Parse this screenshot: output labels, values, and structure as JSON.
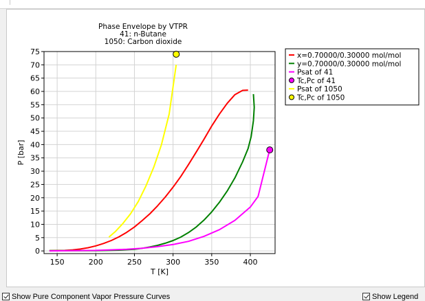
{
  "chart_data": {
    "type": "line",
    "title": [
      "Phase Envelope by VTPR",
      "41: n-Butane",
      "1050: Carbon dioxide"
    ],
    "xlabel": "T [K]",
    "ylabel": "P [bar]",
    "xlim": [
      133,
      432
    ],
    "ylim": [
      -1,
      75
    ],
    "xticks": [
      150,
      200,
      250,
      300,
      350,
      400
    ],
    "yticks": [
      0,
      5,
      10,
      15,
      20,
      25,
      30,
      35,
      40,
      45,
      50,
      55,
      60,
      65,
      70,
      75
    ],
    "grid": true,
    "legend_position": "right",
    "series": [
      {
        "name": "x=0.70000/0.30000 mol/mol",
        "color": "#ff0000",
        "kind": "line",
        "x": [
          140,
          160,
          170,
          180,
          190,
          200,
          210,
          220,
          230,
          240,
          250,
          260,
          270,
          280,
          290,
          300,
          310,
          320,
          330,
          340,
          350,
          360,
          370,
          380,
          390,
          397
        ],
        "y": [
          0.1,
          0.2,
          0.4,
          0.7,
          1.2,
          1.9,
          2.8,
          3.9,
          5.3,
          7.0,
          9.0,
          11.4,
          14.0,
          17.0,
          20.3,
          24.0,
          28.0,
          32.5,
          37.2,
          42.0,
          47.0,
          51.5,
          55.5,
          58.8,
          60.4,
          60.5
        ]
      },
      {
        "name": "y=0.70000/0.30000 mol/mol",
        "color": "#008000",
        "kind": "line",
        "x": [
          140,
          200,
          230,
          250,
          260,
          270,
          280,
          290,
          300,
          310,
          320,
          330,
          340,
          350,
          360,
          370,
          380,
          390,
          397,
          401,
          404,
          405,
          404
        ],
        "y": [
          0.1,
          0.1,
          0.3,
          0.6,
          1.0,
          1.5,
          2.1,
          2.9,
          3.9,
          5.2,
          6.9,
          9.0,
          11.6,
          14.7,
          18.3,
          22.5,
          27.5,
          33.5,
          38.5,
          43.0,
          49.0,
          54.0,
          59.0
        ]
      },
      {
        "name": "Psat of 41",
        "color": "#ff00ff",
        "kind": "line",
        "x": [
          140,
          200,
          240,
          260,
          280,
          300,
          320,
          340,
          360,
          380,
          400,
          410,
          425
        ],
        "y": [
          0.0,
          0.2,
          0.6,
          1.0,
          1.6,
          2.4,
          3.6,
          5.5,
          8.0,
          11.5,
          16.5,
          20.5,
          38.0
        ]
      },
      {
        "name": "Tc,Pc of 41",
        "color": "#ff00ff",
        "kind": "point",
        "x": [
          425.1
        ],
        "y": [
          38.0
        ]
      },
      {
        "name": "Psat of 1050",
        "color": "#ffff00",
        "kind": "line",
        "x": [
          217,
          225,
          235,
          245,
          255,
          265,
          275,
          285,
          295,
          304
        ],
        "y": [
          5.2,
          7.2,
          10.3,
          14.0,
          18.6,
          24.5,
          31.5,
          40.0,
          51.5,
          70.0
        ]
      },
      {
        "name": "Tc,Pc of 1050",
        "color": "#ffff00",
        "kind": "point",
        "x": [
          304.1
        ],
        "y": [
          74.0
        ]
      }
    ]
  },
  "controls": {
    "show_pure_label": "Show Pure Component Vapor Pressure Curves",
    "show_legend_label": "Show Legend"
  }
}
